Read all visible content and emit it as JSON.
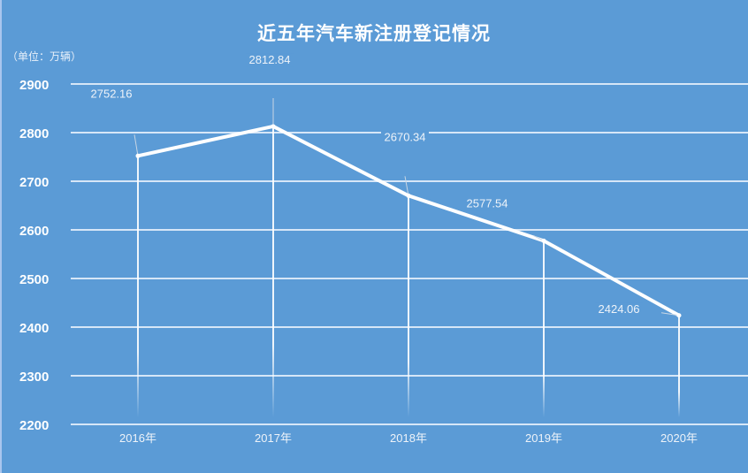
{
  "chart_data": {
    "type": "line",
    "title": "近五年汽车新注册登记情况",
    "ylabel": "（单位：万辆）",
    "categories": [
      "2016年",
      "2017年",
      "2018年",
      "2019年",
      "2020年"
    ],
    "values": [
      2752.16,
      2812.84,
      2670.34,
      2577.54,
      2424.06
    ],
    "data_labels": [
      "2752.16",
      "2812.84",
      "2670.34",
      "2577.54",
      "2424.06"
    ],
    "ylim": [
      2200,
      2900
    ],
    "yticks": [
      "2200",
      "2300",
      "2400",
      "2500",
      "2600",
      "2700",
      "2800",
      "2900"
    ],
    "grid": true,
    "legend": "none",
    "colors": {
      "background": "#5b9bd6",
      "line": "#ffffff",
      "grid": "#d6e6f7"
    }
  }
}
